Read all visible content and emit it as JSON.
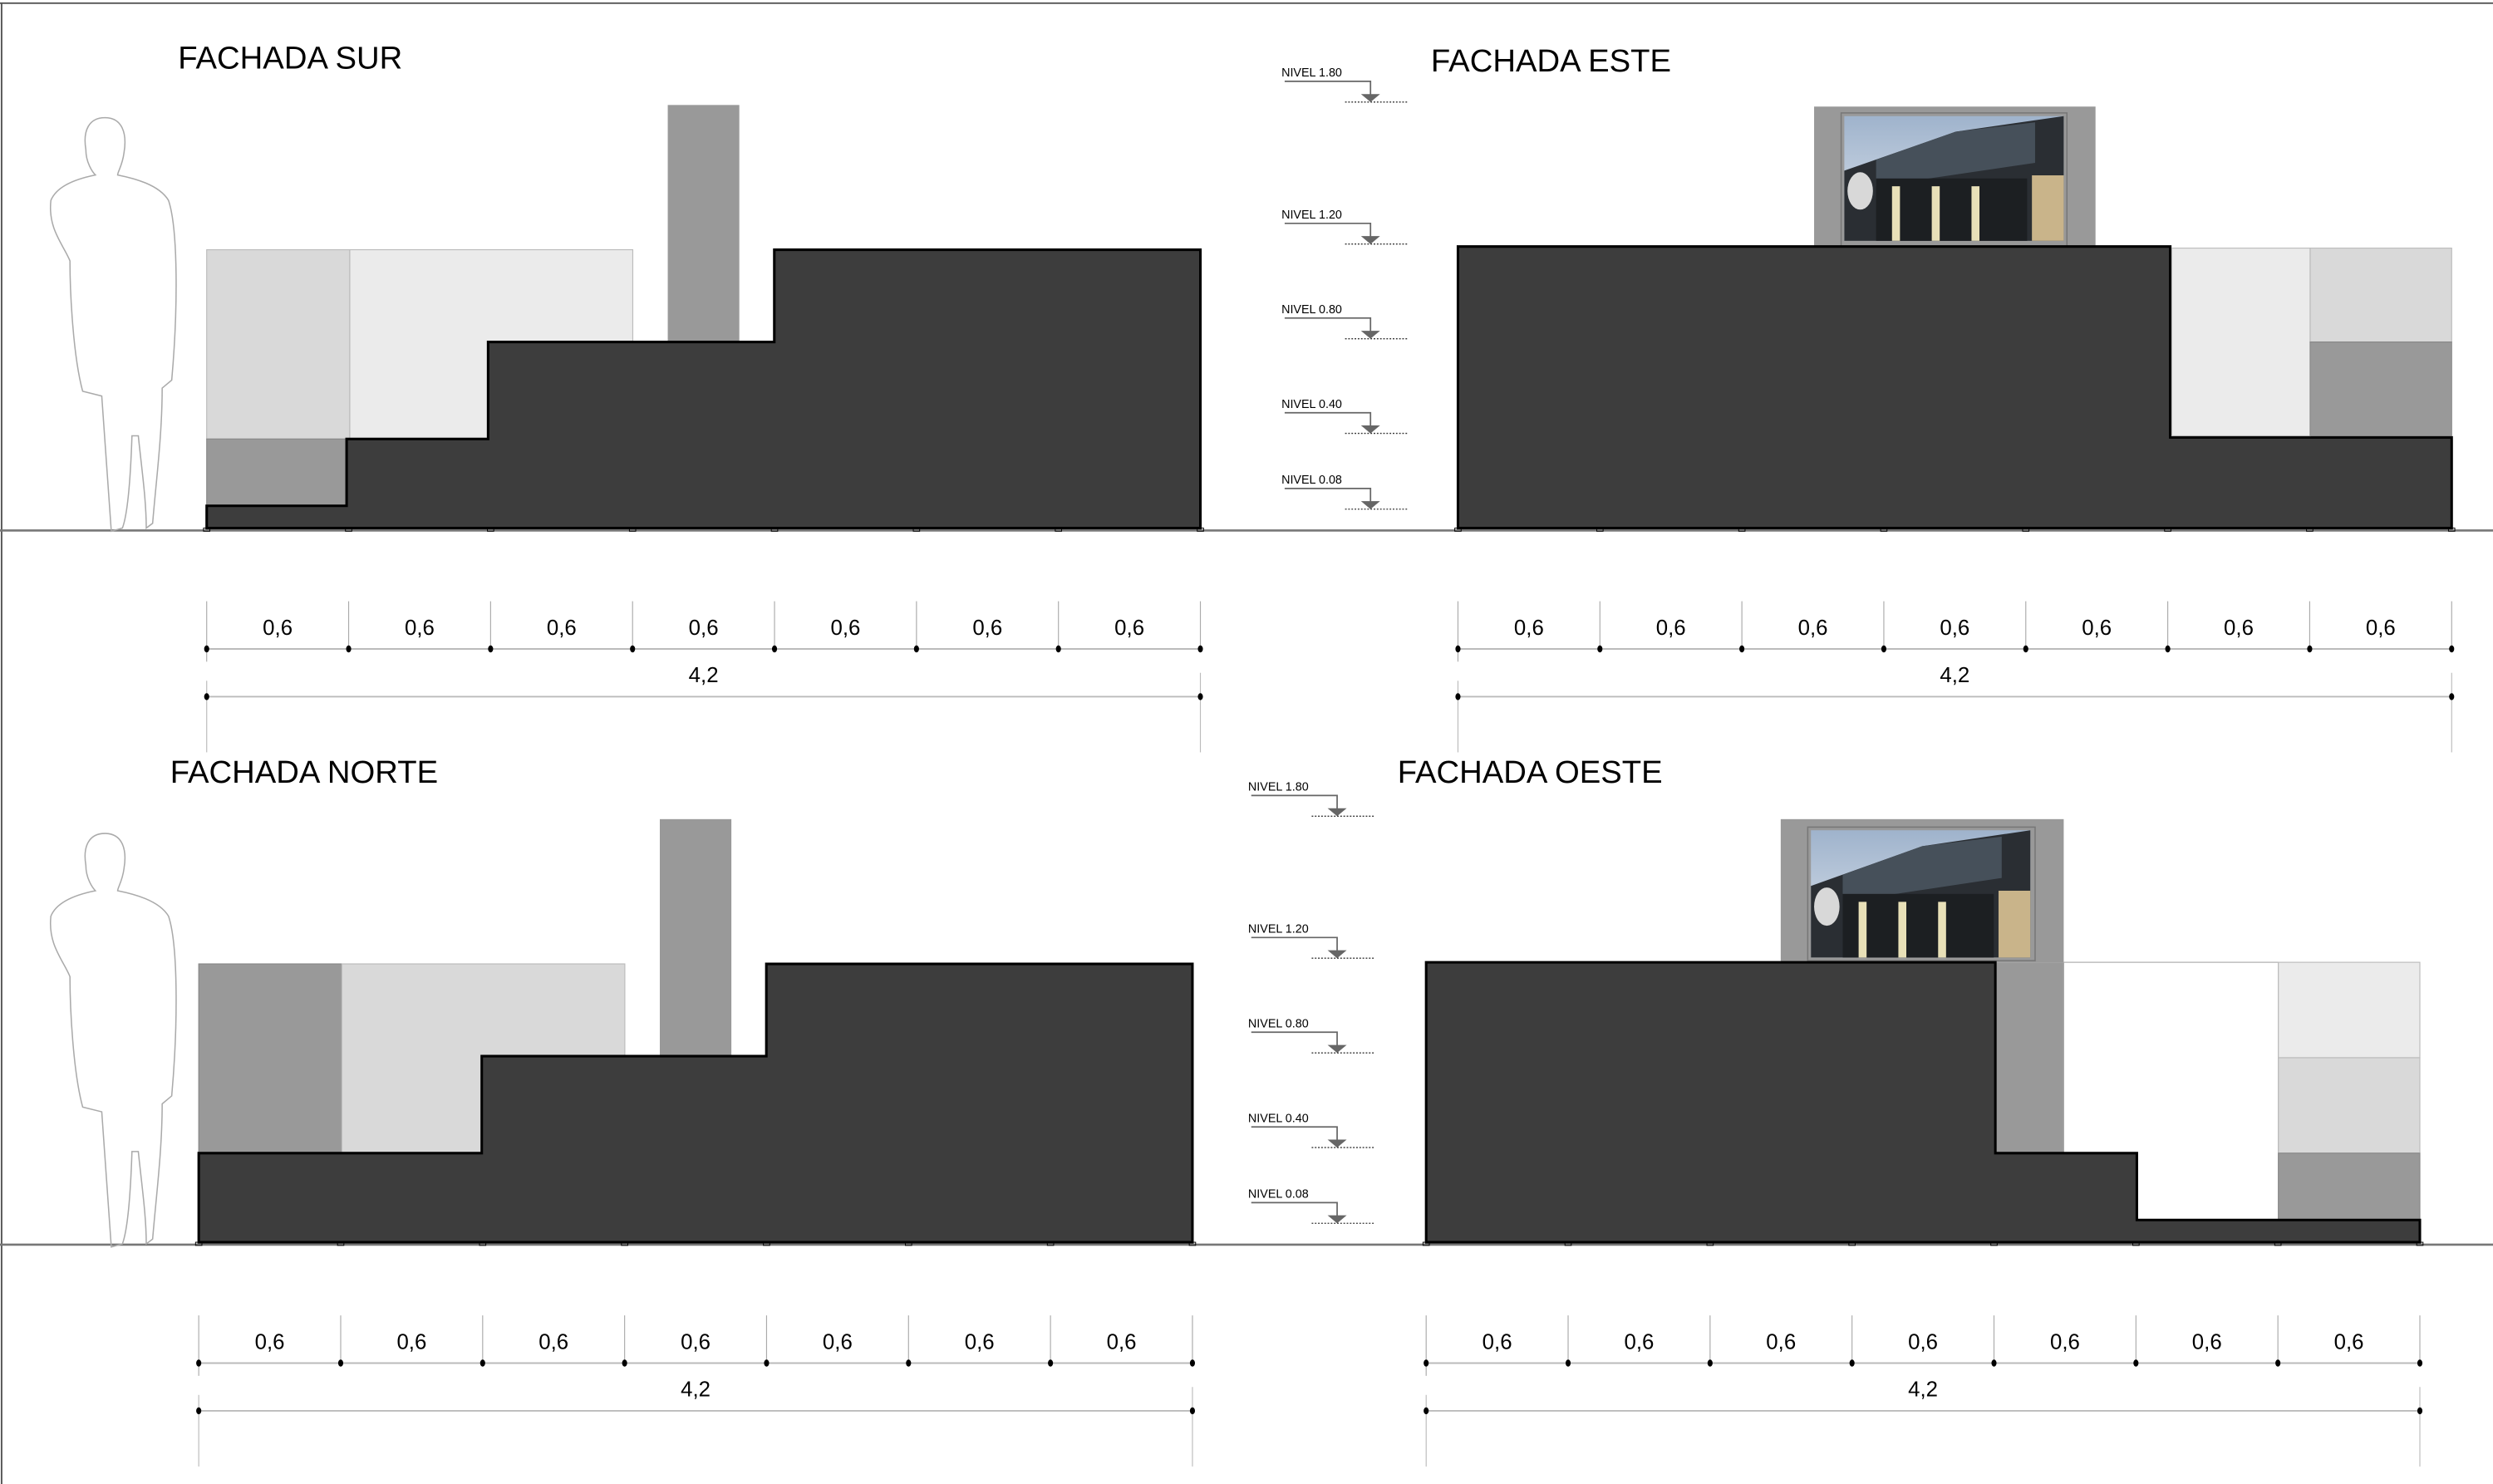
{
  "facades": [
    {
      "id": "sur",
      "title": "FACHADA SUR"
    },
    {
      "id": "este",
      "title": "FACHADA ESTE"
    },
    {
      "id": "norte",
      "title": "FACHADA NORTE"
    },
    {
      "id": "oeste",
      "title": "FACHADA OESTE"
    }
  ],
  "levels": [
    {
      "label": "NIVEL  1.80",
      "value": 1.8
    },
    {
      "label": "NIVEL  1.20",
      "value": 1.2
    },
    {
      "label": "NIVEL  0.80",
      "value": 0.8
    },
    {
      "label": "NIVEL  0.40",
      "value": 0.4
    },
    {
      "label": "NIVEL  0.08",
      "value": 0.08
    }
  ],
  "dimensions": {
    "segments": [
      0.6,
      0.6,
      0.6,
      0.6,
      0.6,
      0.6,
      0.6
    ],
    "segment_labels": [
      "0,6",
      "0,6",
      "0,6",
      "0,6",
      "0,6",
      "0,6",
      "0,6"
    ],
    "total": 4.2,
    "total_label": "4,2"
  },
  "colors": {
    "dark": "#3d3d3d",
    "mid": "#999999",
    "light": "#d9d9d9",
    "lighter": "#ebebeb"
  }
}
